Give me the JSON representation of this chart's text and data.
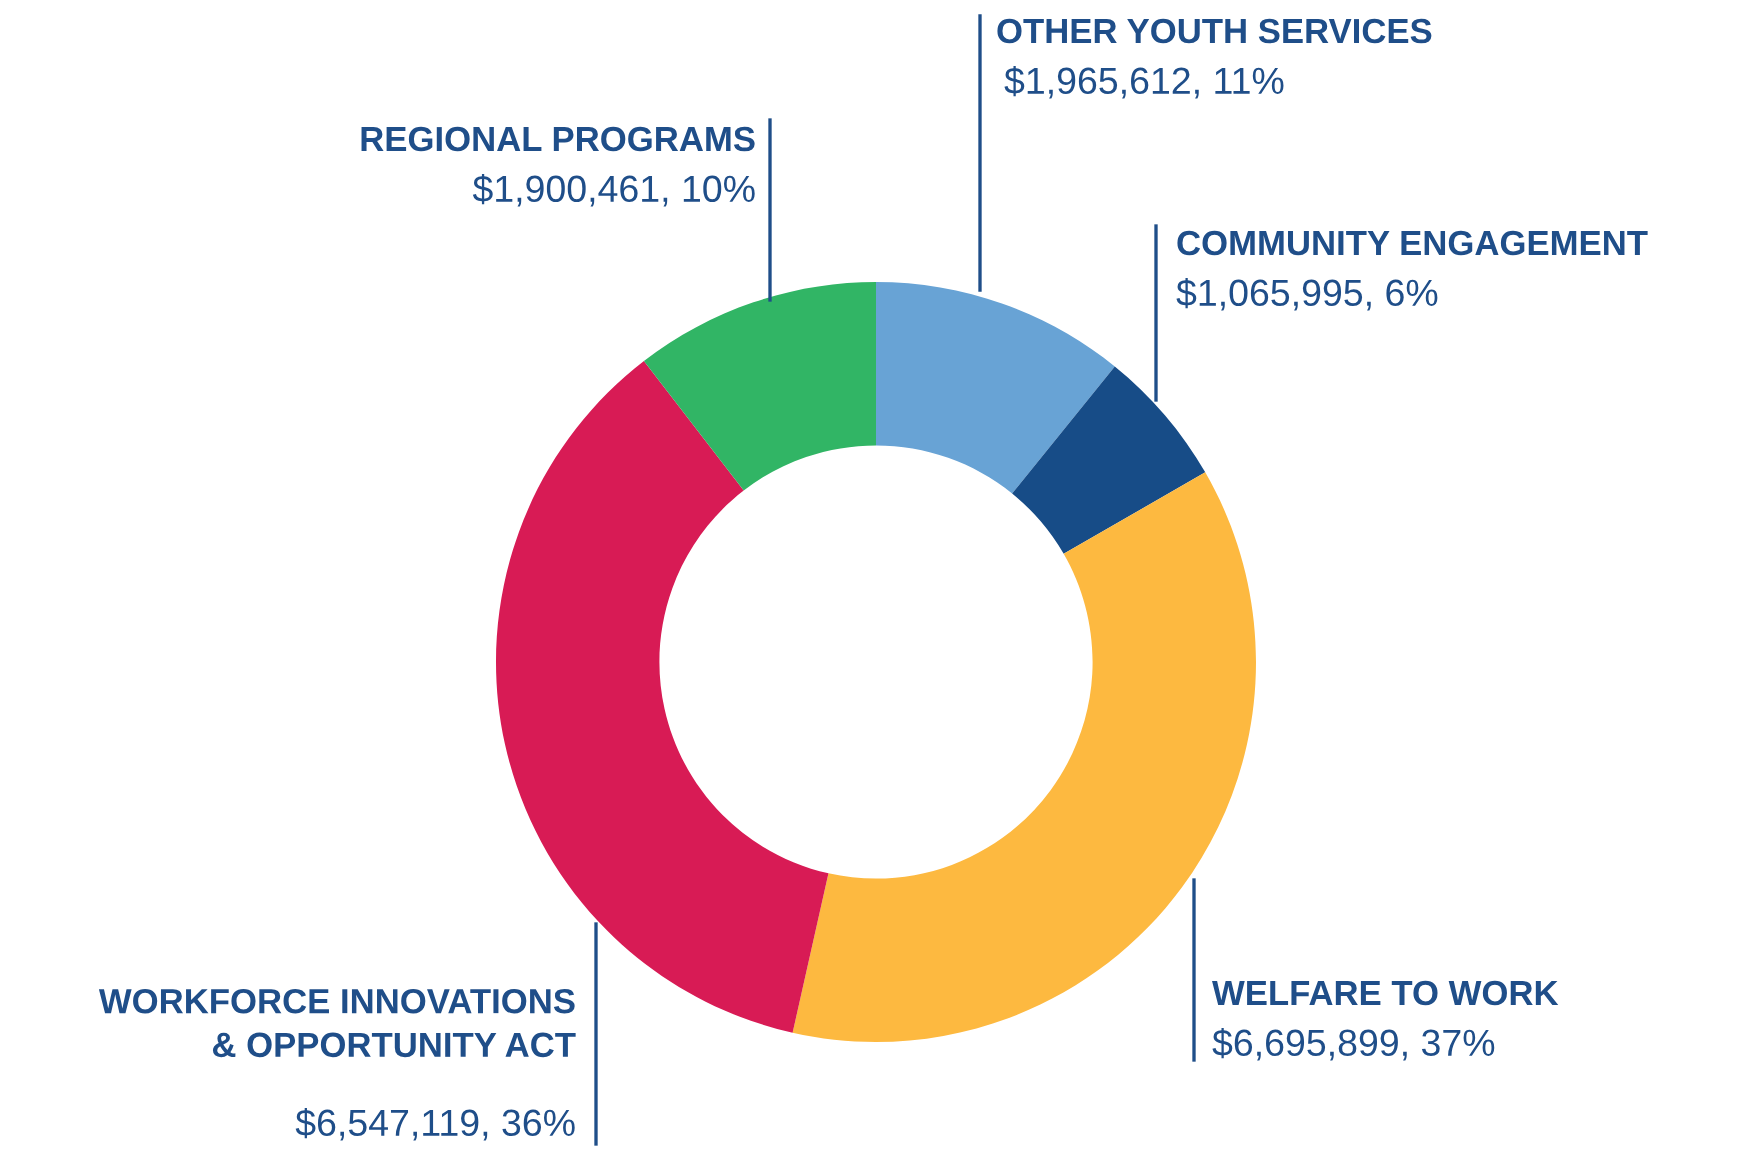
{
  "chart_data": {
    "type": "donut",
    "categories": [
      "OTHER YOUTH SERVICES",
      "COMMUNITY ENGAGEMENT",
      "WELFARE TO WORK",
      "WORKFORCE INNOVATIONS\n& OPPORTUNITY ACT",
      "REGIONAL PROGRAMS"
    ],
    "values": [
      1965612,
      1065995,
      6695899,
      6547119,
      1900461
    ],
    "value_labels": [
      "$1,965,612, 11%",
      "$1,065,995, 6%",
      "$6,695,899, 37%",
      "$6,547,119, 36%",
      "$1,900,461, 10%"
    ],
    "colors": [
      "#68a3d5",
      "#174c87",
      "#fdb940",
      "#d81b55",
      "#31b565"
    ],
    "legend": false
  }
}
